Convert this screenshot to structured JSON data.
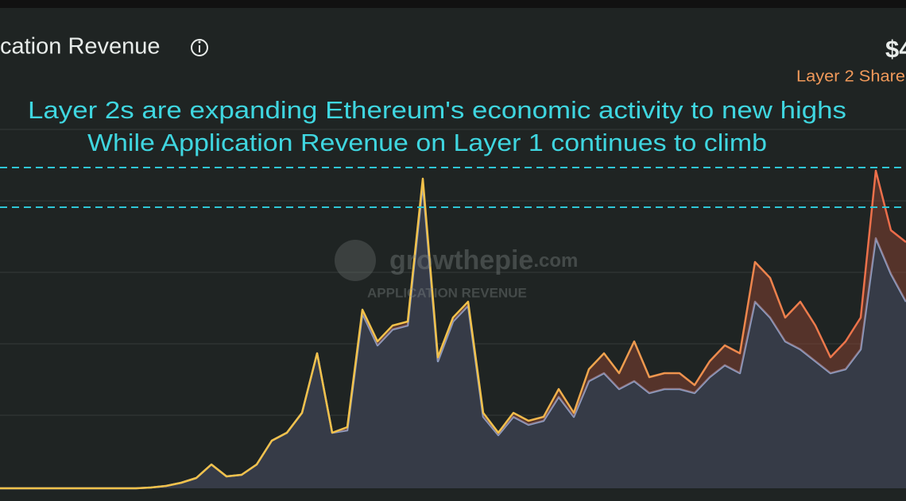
{
  "title": "cation Revenue",
  "header_value": "$4",
  "header_subtitle": "Layer 2 Share",
  "annotations": [
    "Layer 2s are expanding Ethereum's economic activity to new highs",
    "While Application Revenue on Layer 1 continues to climb"
  ],
  "watermark": {
    "brand": "growthepie",
    "domain": ".com",
    "caption": "APPLICATION REVENUE"
  },
  "chart_data": {
    "type": "stacked-area",
    "ylim": [
      0,
      100
    ],
    "series": [
      {
        "color": "#8d9fc6",
        "values": [
          0,
          0,
          0,
          0,
          0,
          0,
          0,
          0,
          0,
          0,
          0.2,
          0.6,
          1.4,
          2.6,
          6,
          3,
          3.4,
          6,
          12,
          14,
          19,
          34,
          14,
          14.6,
          44,
          36,
          40,
          41,
          76.6,
          32,
          42,
          46,
          18,
          13.4,
          18,
          16,
          17,
          23,
          18,
          27,
          29,
          25,
          27,
          24,
          25,
          25,
          24,
          28,
          31,
          29,
          47,
          43,
          37,
          35,
          32,
          29,
          30,
          35,
          63,
          54,
          47
        ]
      },
      {
        "color": "#ee8a4f",
        "values": [
          0,
          0,
          0,
          0,
          0,
          0,
          0,
          0,
          0,
          0,
          0,
          0,
          0,
          0,
          0,
          0,
          0,
          0,
          0,
          0,
          0,
          0,
          0,
          0.8,
          1,
          1,
          1,
          1,
          1.4,
          1,
          1,
          1,
          1,
          0.6,
          1,
          1,
          1,
          2,
          1,
          3,
          5,
          4,
          10,
          4,
          4,
          4,
          2,
          4,
          5,
          5,
          10,
          10,
          6,
          12,
          9,
          4,
          7,
          8,
          17,
          11,
          15
        ]
      }
    ]
  }
}
